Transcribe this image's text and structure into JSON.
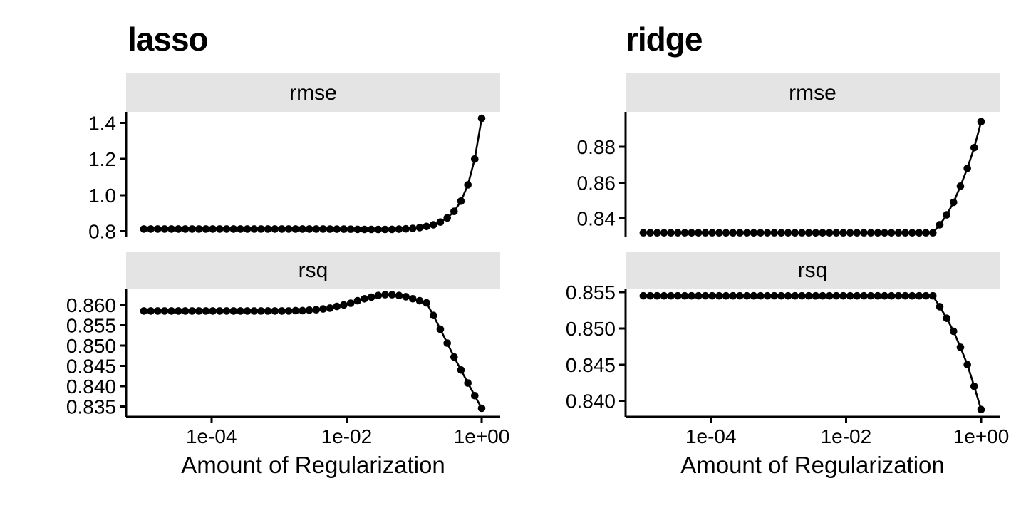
{
  "figure": {
    "background": "#ffffff"
  },
  "style": {
    "strip_fill": "#e4e4e4",
    "line_color": "#000000",
    "text_color": "#000000",
    "point_radius": 5.3,
    "line_width": 2.6,
    "axis_width": 3
  },
  "x_log10": [
    -5,
    -4.898,
    -4.796,
    -4.694,
    -4.592,
    -4.49,
    -4.388,
    -4.286,
    -4.184,
    -4.082,
    -3.98,
    -3.878,
    -3.776,
    -3.673,
    -3.571,
    -3.469,
    -3.367,
    -3.265,
    -3.163,
    -3.061,
    -2.959,
    -2.857,
    -2.755,
    -2.653,
    -2.551,
    -2.449,
    -2.347,
    -2.245,
    -2.143,
    -2.041,
    -1.939,
    -1.837,
    -1.735,
    -1.633,
    -1.531,
    -1.429,
    -1.327,
    -1.224,
    -1.122,
    -1.02,
    -0.918,
    -0.816,
    -0.714,
    -0.612,
    -0.51,
    -0.408,
    -0.306,
    -0.204,
    -0.102,
    0
  ],
  "chart_data": [
    {
      "type": "line",
      "title": "lasso",
      "xlabel": "Amount of Regularization",
      "x_scale": "log10",
      "xlim_log10": [
        -5.263,
        0.274
      ],
      "x_ticks": {
        "labels": [
          "1e-04",
          "1e-02",
          "1e+00"
        ],
        "log10": [
          -4,
          -2,
          0
        ]
      },
      "facets": [
        {
          "label": "rmse",
          "ylim": [
            0.7668,
            1.4608
          ],
          "y_ticks": [
            0.8,
            1.0,
            1.2,
            1.4
          ],
          "y_tick_labels": [
            "0.8",
            "1.0",
            "1.2",
            "1.4"
          ],
          "values": [
            0.8125,
            0.8125,
            0.8125,
            0.8125,
            0.8125,
            0.8125,
            0.8125,
            0.8125,
            0.8125,
            0.8125,
            0.8125,
            0.8125,
            0.8125,
            0.8125,
            0.8125,
            0.8125,
            0.8125,
            0.8125,
            0.8125,
            0.8125,
            0.8125,
            0.8125,
            0.8125,
            0.8125,
            0.8125,
            0.8125,
            0.8125,
            0.8122,
            0.8119,
            0.8116,
            0.8112,
            0.8107,
            0.8103,
            0.8101,
            0.8099,
            0.8101,
            0.8106,
            0.8117,
            0.8134,
            0.8161,
            0.8203,
            0.8266,
            0.836,
            0.8508,
            0.8737,
            0.9098,
            0.9669,
            1.057,
            1.1996,
            1.425
          ]
        },
        {
          "label": "rsq",
          "ylim": [
            0.8325,
            0.864
          ],
          "y_ticks": [
            0.835,
            0.84,
            0.845,
            0.85,
            0.855,
            0.86
          ],
          "y_tick_labels": [
            "0.835",
            "0.840",
            "0.845",
            "0.850",
            "0.855",
            "0.860"
          ],
          "values": [
            0.8585,
            0.8585,
            0.8585,
            0.8585,
            0.8585,
            0.8585,
            0.8585,
            0.8585,
            0.8585,
            0.8585,
            0.8585,
            0.8585,
            0.8585,
            0.8585,
            0.8585,
            0.8585,
            0.8585,
            0.8585,
            0.8585,
            0.8585,
            0.8585,
            0.8585,
            0.8586,
            0.8586,
            0.8587,
            0.8588,
            0.859,
            0.8592,
            0.8596,
            0.86,
            0.8604,
            0.861,
            0.8615,
            0.8619,
            0.8623,
            0.8625,
            0.8625,
            0.8623,
            0.862,
            0.8615,
            0.861,
            0.8605,
            0.8574,
            0.854,
            0.8506,
            0.8472,
            0.844,
            0.8408,
            0.8377,
            0.8346
          ]
        }
      ]
    },
    {
      "type": "line",
      "title": "ridge",
      "xlabel": "Amount of Regularization",
      "x_scale": "log10",
      "xlim_log10": [
        -5.263,
        0.274
      ],
      "x_ticks": {
        "labels": [
          "1e-04",
          "1e-02",
          "1e+00"
        ],
        "log10": [
          -4,
          -2,
          0
        ]
      },
      "facets": [
        {
          "label": "rmse",
          "ylim": [
            0.8295,
            0.8995
          ],
          "y_ticks": [
            0.84,
            0.86,
            0.88
          ],
          "y_tick_labels": [
            "0.84",
            "0.86",
            "0.88"
          ],
          "values": [
            0.832,
            0.832,
            0.832,
            0.832,
            0.832,
            0.832,
            0.832,
            0.832,
            0.832,
            0.832,
            0.832,
            0.832,
            0.832,
            0.832,
            0.832,
            0.832,
            0.832,
            0.832,
            0.832,
            0.832,
            0.832,
            0.832,
            0.832,
            0.832,
            0.832,
            0.832,
            0.832,
            0.832,
            0.832,
            0.832,
            0.832,
            0.832,
            0.832,
            0.832,
            0.832,
            0.832,
            0.832,
            0.832,
            0.832,
            0.832,
            0.832,
            0.832,
            0.832,
            0.8365,
            0.842,
            0.849,
            0.858,
            0.868,
            0.8795,
            0.894
          ]
        },
        {
          "label": "rsq",
          "ylim": [
            0.8378,
            0.8555
          ],
          "y_ticks": [
            0.84,
            0.845,
            0.85,
            0.855
          ],
          "y_tick_labels": [
            "0.840",
            "0.845",
            "0.850",
            "0.855"
          ],
          "values": [
            0.8545,
            0.8545,
            0.8545,
            0.8545,
            0.8545,
            0.8545,
            0.8545,
            0.8545,
            0.8545,
            0.8545,
            0.8545,
            0.8545,
            0.8545,
            0.8545,
            0.8545,
            0.8545,
            0.8545,
            0.8545,
            0.8545,
            0.8545,
            0.8545,
            0.8545,
            0.8545,
            0.8545,
            0.8545,
            0.8545,
            0.8545,
            0.8545,
            0.8545,
            0.8545,
            0.8545,
            0.8545,
            0.8545,
            0.8545,
            0.8545,
            0.8545,
            0.8545,
            0.8545,
            0.8545,
            0.8545,
            0.8545,
            0.8545,
            0.8545,
            0.853,
            0.8514,
            0.8496,
            0.8474,
            0.845,
            0.842,
            0.8388
          ]
        }
      ]
    }
  ]
}
